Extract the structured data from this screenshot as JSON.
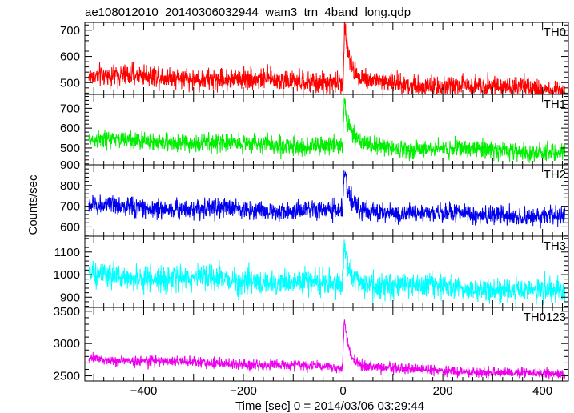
{
  "title": "ae108012010_20140306032944_wam3_trn_4band_long.qdp",
  "xlabel": "Time [sec] 0 = 2014/03/06 03:29:44",
  "ylabel": "Counts/sec",
  "chart_data": {
    "type": "line",
    "title": "ae108012010_20140306032944_wam3_trn_4band_long.qdp",
    "xlabel": "Time [sec] 0 = 2014/03/06 03:29:44",
    "ylabel": "Counts/sec",
    "xlim": [
      -518,
      452
    ],
    "x_ticks": [
      -400,
      -200,
      0,
      200,
      400
    ],
    "grid": false,
    "legend": "none",
    "panels": [
      {
        "name": "TH0",
        "color": "#ff0000",
        "ylim": [
          455,
          730
        ],
        "y_ticks": [
          500,
          600,
          700
        ],
        "baseline_start": 530,
        "baseline_end": 475,
        "noise": 22,
        "peak_time": 3,
        "peak_value": 730,
        "x": [
          -510,
          -400,
          -300,
          -200,
          -100,
          -20,
          0,
          5,
          15,
          50,
          100,
          200,
          300,
          400,
          445
        ],
        "y": [
          530,
          528,
          522,
          520,
          518,
          515,
          715,
          690,
          600,
          530,
          510,
          500,
          495,
          485,
          480
        ]
      },
      {
        "name": "TH1",
        "color": "#00ee00",
        "ylim": [
          415,
          770
        ],
        "y_ticks": [
          500,
          600,
          700
        ],
        "baseline_start": 540,
        "baseline_end": 480,
        "noise": 25,
        "peak_time": 2,
        "peak_value": 750,
        "x": [
          -510,
          -400,
          -300,
          -200,
          -100,
          -20,
          0,
          5,
          15,
          50,
          100,
          200,
          300,
          400,
          445
        ],
        "y": [
          540,
          545,
          540,
          545,
          530,
          525,
          740,
          690,
          620,
          540,
          520,
          505,
          500,
          490,
          480
        ]
      },
      {
        "name": "TH2",
        "color": "#0000ee",
        "ylim": [
          555,
          900
        ],
        "y_ticks": [
          600,
          700,
          800,
          900
        ],
        "baseline_start": 700,
        "baseline_end": 650,
        "noise": 25,
        "peak_time": 2,
        "peak_value": 880,
        "x": [
          -510,
          -400,
          -300,
          -200,
          -100,
          -20,
          0,
          5,
          15,
          50,
          100,
          200,
          300,
          400,
          445
        ],
        "y": [
          705,
          705,
          700,
          700,
          695,
          690,
          870,
          840,
          760,
          690,
          680,
          670,
          660,
          655,
          650
        ]
      },
      {
        "name": "TH3",
        "color": "#00ffff",
        "ylim": [
          855,
          1170
        ],
        "y_ticks": [
          900,
          1000,
          1100
        ],
        "baseline_start": 995,
        "baseline_end": 925,
        "noise": 30,
        "peak_time": 2,
        "peak_value": 1160,
        "x": [
          -510,
          -400,
          -300,
          -200,
          -100,
          -20,
          0,
          5,
          15,
          50,
          100,
          200,
          300,
          400,
          445
        ],
        "y": [
          995,
          995,
          1000,
          990,
          985,
          980,
          1150,
          1110,
          1050,
          975,
          960,
          950,
          940,
          930,
          925
        ]
      },
      {
        "name": "TH0123",
        "color": "#ee00ee",
        "ylim": [
          2420,
          3560
        ],
        "y_ticks": [
          2500,
          3000,
          3500
        ],
        "baseline_start": 2760,
        "baseline_end": 2520,
        "noise": 45,
        "peak_time": 2,
        "peak_value": 3450,
        "x": [
          -510,
          -400,
          -300,
          -200,
          -100,
          -20,
          0,
          5,
          15,
          50,
          100,
          200,
          300,
          400,
          445
        ],
        "y": [
          2760,
          2770,
          2770,
          2790,
          2730,
          2720,
          3420,
          3200,
          2950,
          2720,
          2680,
          2640,
          2600,
          2550,
          2530
        ]
      }
    ]
  }
}
